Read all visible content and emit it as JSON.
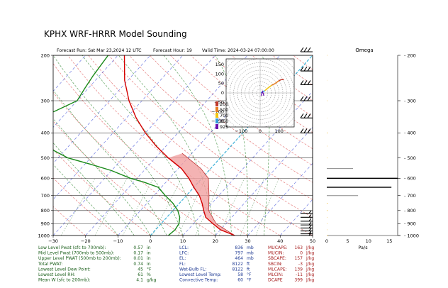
{
  "title": "KPHX WRF-HRRR Model Sounding",
  "header": {
    "forecast_run": "Forecast Run: Sat Mar 23,2024 12 UTC",
    "forecast_hour": "Forecast Hour: 19",
    "valid_time": "Valid Time: 2024-03-24 07:00:00"
  },
  "chart_data": [
    {
      "type": "line",
      "name": "skew-t",
      "p_ticks": [
        200,
        300,
        400,
        500,
        600,
        700,
        800,
        900,
        1000
      ],
      "t_ticks": [
        -30,
        -20,
        -10,
        0,
        10,
        20,
        30,
        40,
        50
      ],
      "xlim": [
        -30,
        50
      ],
      "ylim": [
        1000,
        200
      ],
      "series": [
        {
          "color": "#d40000",
          "points": [
            [
              1000,
              26
            ],
            [
              950,
              20
            ],
            [
              900,
              16
            ],
            [
              850,
              12
            ],
            [
              800,
              9.5
            ],
            [
              750,
              7
            ],
            [
              700,
              4
            ],
            [
              650,
              0
            ],
            [
              600,
              -4
            ],
            [
              550,
              -9
            ],
            [
              500,
              -16
            ],
            [
              450,
              -23
            ],
            [
              400,
              -30
            ],
            [
              350,
              -37
            ],
            [
              300,
              -44
            ],
            [
              250,
              -51
            ],
            [
              200,
              -58
            ]
          ]
        },
        {
          "color": "#1a8a1a",
          "points": [
            [
              1000,
              5.5
            ],
            [
              950,
              6
            ],
            [
              900,
              5.5
            ],
            [
              850,
              4
            ],
            [
              800,
              1.5
            ],
            [
              750,
              -2
            ],
            [
              700,
              -6.5
            ],
            [
              650,
              -11
            ],
            [
              620,
              -17
            ],
            [
              600,
              -22
            ],
            [
              560,
              -30
            ],
            [
              530,
              -38
            ],
            [
              500,
              -47
            ],
            [
              470,
              -53
            ],
            [
              440,
              -58
            ],
            [
              410,
              -64
            ],
            [
              390,
              -71
            ],
            [
              370,
              -73
            ],
            [
              330,
              -64
            ],
            [
              300,
              -60
            ],
            [
              270,
              -61
            ],
            [
              240,
              -62
            ],
            [
              200,
              -63
            ]
          ]
        }
      ],
      "parcel_color": "#f1a0a0"
    },
    {
      "type": "line",
      "name": "hodograph",
      "ticks_x": [
        -100,
        0,
        100
      ],
      "ticks_y": [
        150,
        100,
        50,
        0,
        -50,
        -100,
        -150
      ],
      "xlim": [
        -180,
        180
      ],
      "ylim": [
        -180,
        180
      ],
      "legend": [
        "200",
        "500",
        "700",
        "850",
        "925"
      ],
      "legend_colors": [
        "#c0392b",
        "#e67e22",
        "#f1c40f",
        "#3498db",
        "#6a0dad"
      ],
      "x": [
        5,
        10,
        25,
        40,
        60,
        80,
        100,
        115,
        125
      ],
      "y": [
        0,
        5,
        12,
        25,
        40,
        50,
        65,
        72,
        70
      ]
    },
    {
      "type": "bar",
      "name": "omega",
      "title": "Omega",
      "xlabel": "Pa/s",
      "x_ticks": [
        0,
        5,
        10,
        15
      ],
      "xlim": [
        0,
        17
      ],
      "categories": [
        200,
        250,
        300,
        350,
        400,
        450,
        500,
        550,
        600,
        650,
        700,
        750,
        800,
        850,
        900,
        950,
        1000
      ],
      "values": [
        0.1,
        0.05,
        0.1,
        0.05,
        0.2,
        0.1,
        0.1,
        6.3,
        17,
        15.5,
        7.5,
        0.2,
        0.2,
        0.1,
        0.1,
        0.1,
        0.2
      ]
    }
  ],
  "stats_left": [
    {
      "label": "Low Level Pwat (sfc to 700mb):",
      "value": "0.57",
      "unit": "in"
    },
    {
      "label": "Mid Level Pwat (700mb to 500mb):",
      "value": "0.17",
      "unit": "in"
    },
    {
      "label": "Upper Level PWAT (500mb to 200mb):",
      "value": "0.01",
      "unit": "in"
    },
    {
      "label": "Total PWAT:",
      "value": "0.74",
      "unit": "in"
    },
    {
      "label": "Lowest Level Dew Point:",
      "value": "45",
      "unit": "°F"
    },
    {
      "label": "Lowest Level RH:",
      "value": "61",
      "unit": "%"
    },
    {
      "label": "Mean W (sfc to 200mb):",
      "value": "4.1",
      "unit": "g/kg"
    }
  ],
  "stats_mid": [
    {
      "label": "LCL:",
      "value": "836",
      "unit": "mb"
    },
    {
      "label": "LFC:",
      "value": "797",
      "unit": "mb"
    },
    {
      "label": "EL:",
      "value": "464",
      "unit": "mb"
    },
    {
      "label": "FL:",
      "value": "8122",
      "unit": "ft"
    },
    {
      "label": "Wet-Bulb FL:",
      "value": "8122",
      "unit": "ft"
    },
    {
      "label": "Lowest Level Temp:",
      "value": "58",
      "unit": "°F"
    },
    {
      "label": "Convective Temp:",
      "value": "60",
      "unit": "°F"
    }
  ],
  "stats_right": [
    {
      "label": "MUCAPE:",
      "value": "163",
      "unit": "J/kg"
    },
    {
      "label": "MUCIN:",
      "value": "0",
      "unit": "J/kg"
    },
    {
      "label": "SBCAPE:",
      "value": "157",
      "unit": "J/kg"
    },
    {
      "label": "SBCIN:",
      "value": "-3",
      "unit": "J/kg"
    },
    {
      "label": "MLCAPE:",
      "value": "139",
      "unit": "J/kg"
    },
    {
      "label": "MLCIN:",
      "value": "-11",
      "unit": "J/kg"
    },
    {
      "label": "DCAPE",
      "value": "399",
      "unit": "J/kg"
    }
  ]
}
